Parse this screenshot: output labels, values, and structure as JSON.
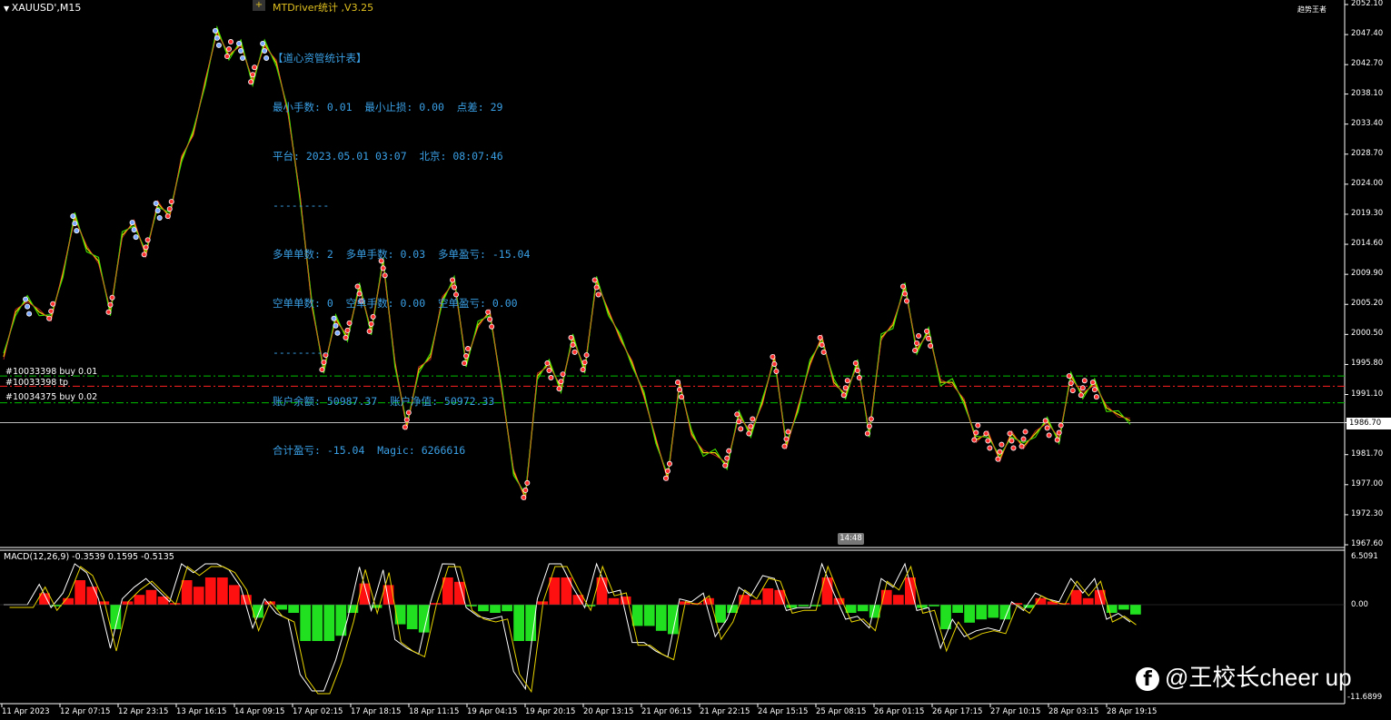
{
  "chart_title": "XAUUSD',M15",
  "ea": {
    "title": "MTDriver统计 ,V3.25",
    "stats_lines": [
      "【道心资管统计表】",
      "最小手数: 0.01  最小止损: 0.00  点差: 29",
      "平台: 2023.05.01 03:07  北京: 08:07:46",
      "---------",
      "多单单数: 2  多单手数: 0.03  多单盈亏: -15.04",
      "空单单数: 0  空单手数: 0.00  空单盈亏: 0.00",
      "---------",
      "账户余额: 50987.37  账户净值: 50972.33",
      "合计盈亏: -15.04  Magic: 6266616"
    ]
  },
  "orders": [
    {
      "label": "#10033398 buy 0.01",
      "price": 1994.0,
      "color": "#00c000"
    },
    {
      "label": "#10033398 tp",
      "price": 1992.4,
      "color": "#ff2020"
    },
    {
      "label": "#10034375 buy 0.02",
      "price": 1989.8,
      "color": "#00c000"
    }
  ],
  "current_price": "1986.70",
  "topright_text": "趋势王者",
  "clock_label": "14:48",
  "macd": {
    "label": "MACD(12,26,9) -0.3539 0.1595 -0.5135",
    "ticks": [
      "6.5091",
      "0.00",
      "-11.6899"
    ]
  },
  "watermark": "@王校长cheer up",
  "watermark_icon": "facebook-icon",
  "chart_data": {
    "type": "line",
    "title": "XAUUSD',M15",
    "ylim": [
      1967.6,
      2052.1
    ],
    "y_ticks": [
      "2052.10",
      "2047.40",
      "2042.70",
      "2038.10",
      "2033.40",
      "2028.70",
      "2024.00",
      "2019.30",
      "2014.60",
      "2009.90",
      "2005.20",
      "2000.50",
      "1995.80",
      "1991.10",
      "1986.70",
      "1981.70",
      "1977.00",
      "1972.30",
      "1967.60"
    ],
    "x_ticks": [
      "11 Apr 2023",
      "12 Apr 07:15",
      "12 Apr 23:15",
      "13 Apr 16:15",
      "14 Apr 09:15",
      "17 Apr 02:15",
      "17 Apr 18:15",
      "18 Apr 11:15",
      "19 Apr 04:15",
      "19 Apr 20:15",
      "20 Apr 13:15",
      "21 Apr 06:15",
      "21 Apr 22:15",
      "24 Apr 15:15",
      "25 Apr 08:15",
      "26 Apr 01:15",
      "26 Apr 17:15",
      "27 Apr 10:15",
      "28 Apr 03:15",
      "28 Apr 19:15"
    ],
    "series": [
      {
        "values": [
          1997,
          2004,
          2006,
          2004,
          2003,
          2010,
          2019,
          2014,
          2012,
          2004,
          2016,
          2018,
          2013,
          2021,
          2019,
          2028,
          2032,
          2040,
          2048,
          2044,
          2046,
          2040,
          2046,
          2043,
          2035,
          2022,
          2005,
          1995,
          2003,
          2000,
          2008,
          2001,
          2012,
          1996,
          1986,
          1995,
          1997,
          2006,
          2009,
          1996,
          2002,
          2004,
          1992,
          1979,
          1975,
          1994,
          1996,
          1992,
          2000,
          1995,
          2009,
          2004,
          2000,
          1996,
          1991,
          1984,
          1978,
          1993,
          1985,
          1982,
          1982,
          1980,
          1988,
          1985,
          1990,
          1997,
          1983,
          1989,
          1996,
          2000,
          1993,
          1991,
          1996,
          1985,
          2000,
          2002,
          2008,
          1998,
          2001,
          1993,
          1993,
          1990,
          1984,
          1985,
          1981,
          1985,
          1983,
          1985,
          1987,
          1984,
          1994,
          1991,
          1993,
          1989,
          1988,
          1987
        ]
      }
    ]
  }
}
